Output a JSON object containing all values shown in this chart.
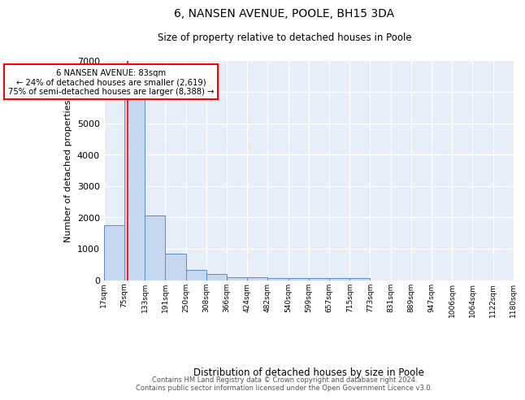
{
  "title1": "6, NANSEN AVENUE, POOLE, BH15 3DA",
  "title2": "Size of property relative to detached houses in Poole",
  "xlabel": "Distribution of detached houses by size in Poole",
  "ylabel": "Number of detached properties",
  "bins": [
    "17sqm",
    "75sqm",
    "133sqm",
    "191sqm",
    "250sqm",
    "308sqm",
    "366sqm",
    "424sqm",
    "482sqm",
    "540sqm",
    "599sqm",
    "657sqm",
    "715sqm",
    "773sqm",
    "831sqm",
    "889sqm",
    "947sqm",
    "1006sqm",
    "1064sqm",
    "1122sqm",
    "1180sqm"
  ],
  "bar_heights": [
    1750,
    5800,
    2050,
    830,
    330,
    195,
    100,
    100,
    60,
    60,
    60,
    60,
    55,
    0,
    0,
    0,
    0,
    0,
    0,
    0
  ],
  "bar_color": "#c5d8f0",
  "bar_edge_color": "#5b8ec4",
  "annotation_title": "6 NANSEN AVENUE: 83sqm",
  "annotation_line1": "← 24% of detached houses are smaller (2,619)",
  "annotation_line2": "75% of semi-detached houses are larger (8,388) →",
  "ylim": [
    0,
    7000
  ],
  "yticks": [
    0,
    1000,
    2000,
    3000,
    4000,
    5000,
    6000,
    7000
  ],
  "bg_color": "#e8eef8",
  "footer1": "Contains HM Land Registry data © Crown copyright and database right 2024.",
  "footer2": "Contains public sector information licensed under the Open Government Licence v3.0."
}
